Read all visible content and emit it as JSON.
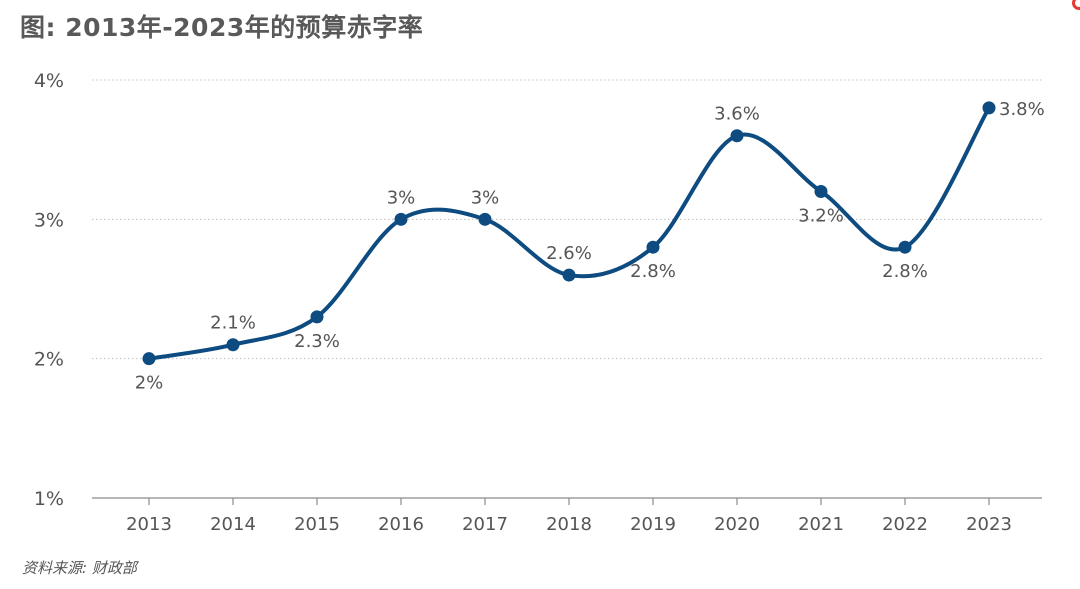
{
  "title": "图: 2013年-2023年的预算赤字率",
  "source": "资料来源: 财政部",
  "colors": {
    "line": "#0d4b80",
    "grid": "#bfbfbf",
    "text": "#555555"
  },
  "chart_data": {
    "type": "line",
    "title": "图: 2013年-2023年的预算赤字率",
    "categories": [
      "2013",
      "2014",
      "2015",
      "2016",
      "2017",
      "2018",
      "2019",
      "2020",
      "2021",
      "2022",
      "2023"
    ],
    "values": [
      2.0,
      2.1,
      2.3,
      3.0,
      3.0,
      2.6,
      2.8,
      3.6,
      3.2,
      2.8,
      3.8
    ],
    "data_labels": [
      "2%",
      "2.1%",
      "2.3%",
      "3%",
      "3%",
      "2.6%",
      "2.8%",
      "3.6%",
      "3.2%",
      "2.8%",
      "3.8%"
    ],
    "ylim": [
      1,
      4
    ],
    "yticks": [
      1,
      2,
      3,
      4
    ],
    "ytick_labels": [
      "1%",
      "2%",
      "3%",
      "4%"
    ],
    "grid": "horizontal dotted",
    "smooth": true,
    "markers": true
  }
}
